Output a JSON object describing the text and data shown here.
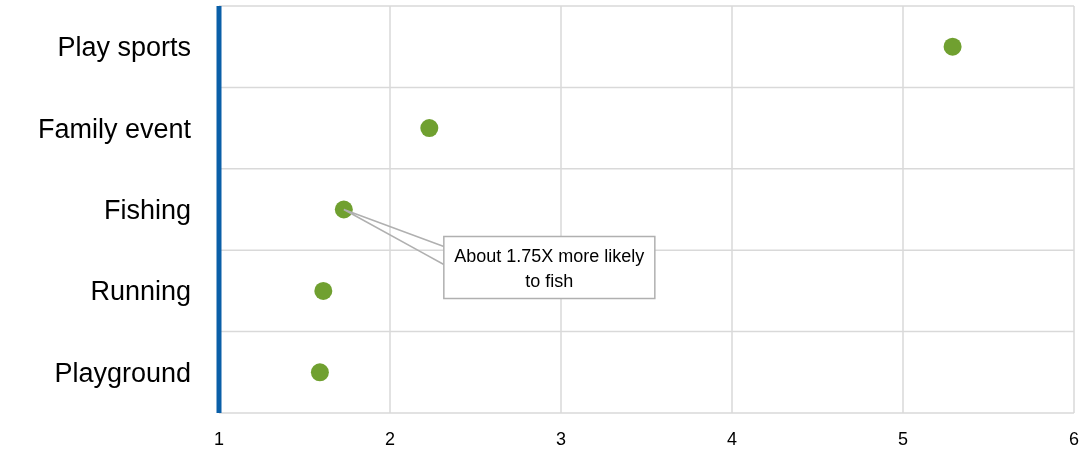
{
  "chart_data": {
    "type": "scatter",
    "orientation": "horizontal",
    "categories": [
      "Play sports",
      "Family event",
      "Fishing",
      "Running",
      "Playground"
    ],
    "values": [
      5.29,
      2.23,
      1.73,
      1.61,
      1.59
    ],
    "color": "#70a030",
    "marker": "circle",
    "xlim": [
      1,
      6
    ],
    "xticks": [
      1,
      2,
      3,
      4,
      5,
      6
    ],
    "grid": true,
    "annotations": [
      {
        "text": "About 1.75X more likely to fish",
        "x": 1.73,
        "y": "Fishing"
      }
    ]
  }
}
